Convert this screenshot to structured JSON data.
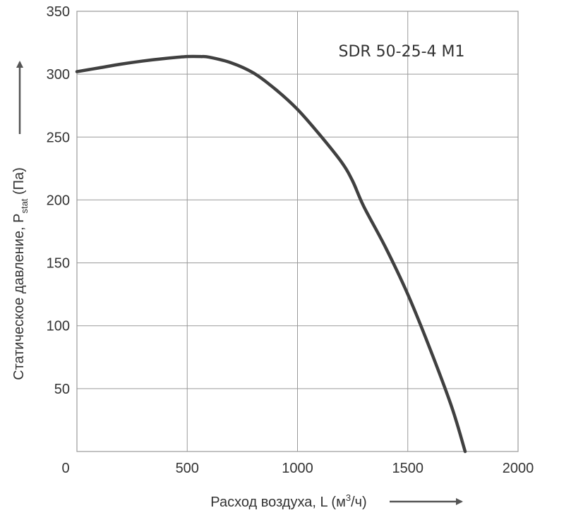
{
  "chart_data": {
    "type": "line",
    "series": [
      {
        "name": "SDR 50-25-4 M1",
        "x": [
          0,
          100,
          200,
          300,
          400,
          500,
          560,
          600,
          700,
          800,
          900,
          1000,
          1100,
          1200,
          1250,
          1300,
          1400,
          1500,
          1600,
          1700,
          1760
        ],
        "y": [
          302,
          305,
          308,
          310.5,
          312.5,
          314,
          314,
          313.5,
          309,
          301,
          288,
          272,
          252,
          230,
          215,
          195,
          162,
          125,
          82,
          35,
          0
        ]
      }
    ],
    "x_ticks": [
      "0",
      "500",
      "1000",
      "1500",
      "2000"
    ],
    "y_ticks": [
      "50",
      "100",
      "150",
      "200",
      "250",
      "300",
      "350"
    ],
    "xlim": [
      0,
      2000
    ],
    "ylim": [
      0,
      350
    ],
    "xlabel": {
      "text": "Расход воздуха, L (м",
      "sup": "3",
      "tail": "/ч)"
    },
    "ylabel": {
      "text": "Статическое давление, P",
      "sub": "stat",
      "tail": " (Па)"
    },
    "grid": true,
    "colors": {
      "line": "#404040",
      "grid": "#9a9a9a",
      "text": "#333333",
      "arrow": "#555555"
    }
  }
}
